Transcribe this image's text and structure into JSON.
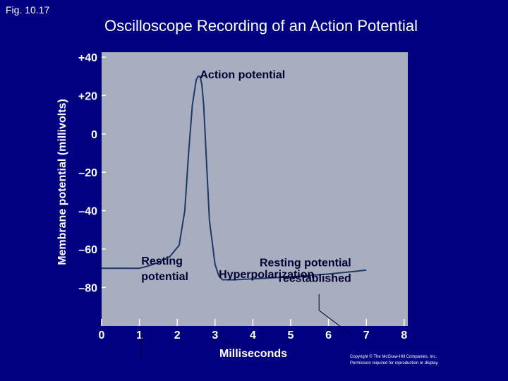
{
  "figure_label": "Fig. 10.17",
  "chart_data": {
    "type": "line",
    "title": "Oscilloscope Recording of an Action Potential",
    "xlabel": "Milliseconds",
    "ylabel": "Membrane potential (millivolts)",
    "xlim": [
      0,
      8
    ],
    "ylim": [
      -100,
      40
    ],
    "x_ticks": [
      0,
      1,
      2,
      3,
      4,
      5,
      6,
      7,
      8
    ],
    "x_tick_labels": [
      "0",
      "1",
      "2",
      "3",
      "4",
      "5",
      "6",
      "7",
      "8"
    ],
    "y_ticks": [
      40,
      20,
      0,
      -20,
      -40,
      -60,
      -80
    ],
    "y_tick_labels": [
      "+40",
      "+20",
      "0",
      "–20",
      "–40",
      "–60",
      "–80"
    ],
    "series": [
      {
        "name": "Membrane potential",
        "x": [
          0,
          0.5,
          1.0,
          1.2,
          1.5,
          1.8,
          2.05,
          2.2,
          2.3,
          2.4,
          2.5,
          2.55,
          2.6,
          2.65,
          2.7,
          2.75,
          2.85,
          3.0,
          3.1,
          3.2,
          3.3,
          3.5,
          4.0,
          5.0,
          6.0,
          7.0
        ],
        "y": [
          -70,
          -70,
          -70,
          -69,
          -67,
          -64,
          -58,
          -40,
          -10,
          15,
          28,
          30,
          30,
          26,
          15,
          -5,
          -45,
          -68,
          -74,
          -76,
          -76,
          -76,
          -75.5,
          -74.5,
          -73,
          -71
        ]
      }
    ],
    "annotations": [
      {
        "text": "Action potential",
        "x": 2.6,
        "y": 29
      },
      {
        "text": [
          "Resting potential",
          "reestablished"
        ],
        "x": 6.6,
        "y": -69
      },
      {
        "text": [
          "Resting",
          "potential"
        ],
        "x": 1.05,
        "y": -68
      },
      {
        "text": "Hyperpolarization",
        "x": 3.1,
        "y": -75
      }
    ]
  },
  "copyright": [
    "Copyright © The McGraw-Hill Companies, Inc.",
    "Permission required for reproduction or display."
  ],
  "colors": {
    "background": "#000080",
    "plot_bg": "#a8aebf",
    "trace": "#1b3a6a",
    "text": "#ffffff",
    "label_text": "#000033"
  }
}
